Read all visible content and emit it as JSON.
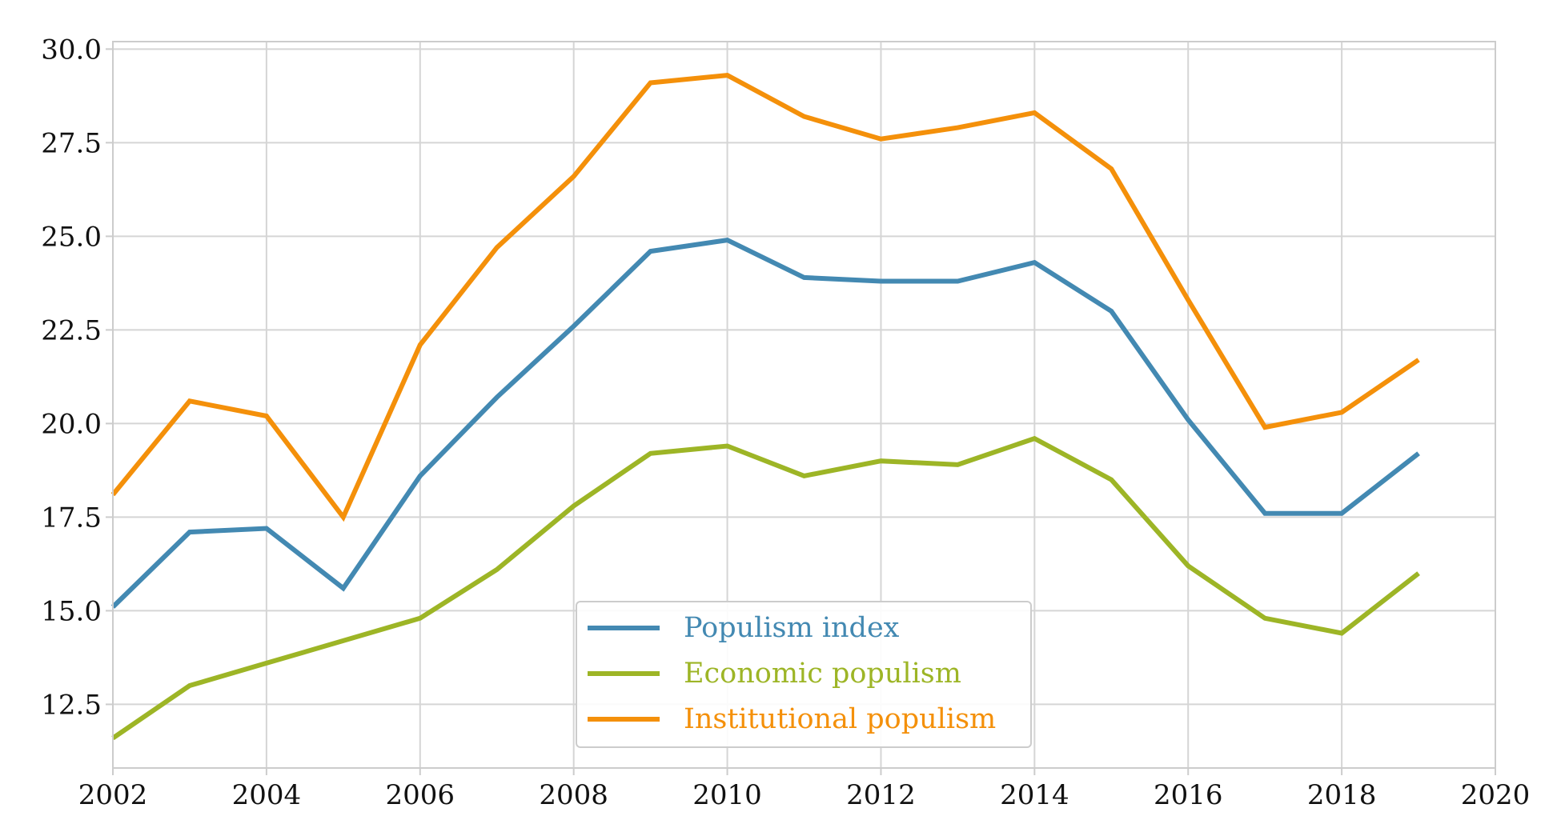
{
  "chart_data": {
    "type": "line",
    "title": "",
    "xlabel": "",
    "ylabel": "",
    "xlim": [
      2002,
      2020
    ],
    "ylim": [
      10.8,
      30.2
    ],
    "x_ticks": [
      2002,
      2004,
      2006,
      2008,
      2010,
      2012,
      2014,
      2016,
      2018,
      2020
    ],
    "x_tick_labels": [
      "2002",
      "2004",
      "2006",
      "2008",
      "2010",
      "2012",
      "2014",
      "2016",
      "2018",
      "2020"
    ],
    "y_ticks": [
      12.5,
      15.0,
      17.5,
      20.0,
      22.5,
      25.0,
      27.5,
      30.0
    ],
    "y_tick_labels": [
      "12.5",
      "15.0",
      "17.5",
      "20.0",
      "22.5",
      "25.0",
      "27.5",
      "30.0"
    ],
    "grid": true,
    "legend_position": "bottom-center",
    "x": [
      2002,
      2003,
      2004,
      2005,
      2006,
      2007,
      2008,
      2009,
      2010,
      2011,
      2012,
      2013,
      2014,
      2015,
      2016,
      2017,
      2018,
      2019
    ],
    "series": [
      {
        "name": "Populism index",
        "color": "#4389b2",
        "values": [
          15.1,
          17.1,
          17.2,
          15.6,
          18.6,
          20.7,
          22.6,
          24.6,
          24.9,
          23.9,
          23.8,
          23.8,
          24.3,
          23.0,
          20.1,
          17.6,
          17.6,
          19.2
        ]
      },
      {
        "name": "Economic populism",
        "color": "#9db526",
        "values": [
          11.6,
          13.0,
          13.6,
          14.2,
          14.8,
          16.1,
          17.8,
          19.2,
          19.4,
          18.6,
          19.0,
          18.9,
          19.6,
          18.5,
          16.2,
          14.8,
          14.4,
          16.0
        ]
      },
      {
        "name": "Institutional populism",
        "color": "#f4900a",
        "values": [
          18.1,
          20.6,
          20.2,
          17.5,
          22.1,
          24.7,
          26.6,
          29.1,
          29.3,
          28.2,
          27.6,
          27.9,
          28.3,
          26.8,
          23.3,
          19.9,
          20.3,
          21.7
        ]
      }
    ]
  }
}
